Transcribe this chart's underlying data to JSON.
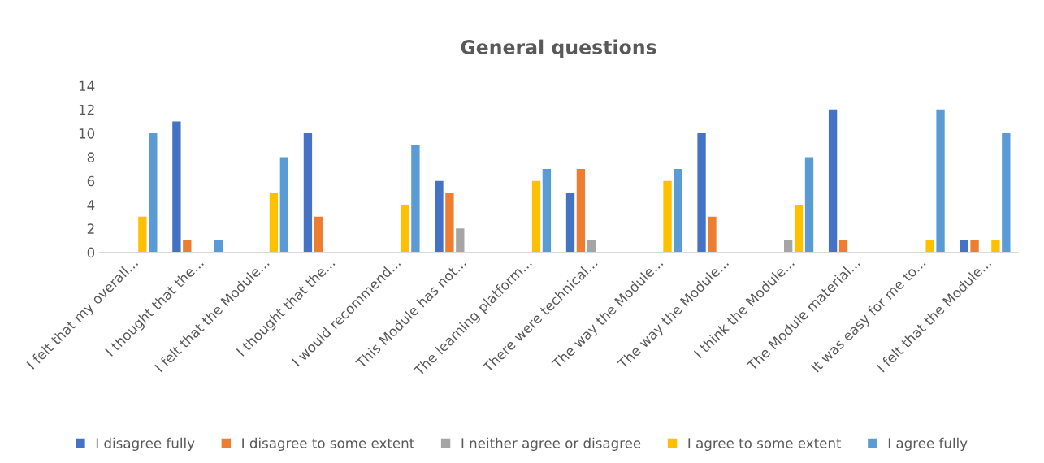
{
  "chart_data": {
    "type": "bar",
    "title": "General questions",
    "categories": [
      "I felt that my overall...",
      "I thought that the...",
      "I felt that the Module...",
      "I thought that the...",
      "I would recommend...",
      "This Module has not...",
      "The learning platform...",
      "There were technical...",
      "The way the Module...",
      "The way the Module...",
      "I think the Module...",
      "The Module material...",
      "It was easy for me to...",
      "I felt that the Module..."
    ],
    "series": [
      {
        "name": "I disagree fully",
        "color": "#4472c4",
        "values": [
          0,
          11,
          0,
          10,
          0,
          6,
          0,
          5,
          0,
          10,
          0,
          12,
          0,
          1
        ]
      },
      {
        "name": "I disagree to some extent",
        "color": "#ed7d31",
        "values": [
          0,
          1,
          0,
          3,
          0,
          5,
          0,
          7,
          0,
          3,
          0,
          1,
          0,
          1
        ]
      },
      {
        "name": "I neither agree or disagree",
        "color": "#a5a5a5",
        "values": [
          0,
          0,
          0,
          0,
          0,
          2,
          0,
          1,
          0,
          0,
          1,
          0,
          0,
          0
        ]
      },
      {
        "name": "I agree to some extent",
        "color": "#ffc000",
        "values": [
          3,
          0,
          5,
          0,
          4,
          0,
          6,
          0,
          6,
          0,
          4,
          0,
          1,
          1
        ]
      },
      {
        "name": "I agree fully",
        "color": "#5b9bd5",
        "values": [
          10,
          1,
          8,
          0,
          9,
          0,
          7,
          0,
          7,
          0,
          8,
          0,
          12,
          10
        ]
      }
    ],
    "ylim": [
      0,
      14
    ],
    "yticks": [
      0,
      2,
      4,
      6,
      8,
      10,
      12,
      14
    ],
    "grid": false,
    "legend": "bottom"
  }
}
